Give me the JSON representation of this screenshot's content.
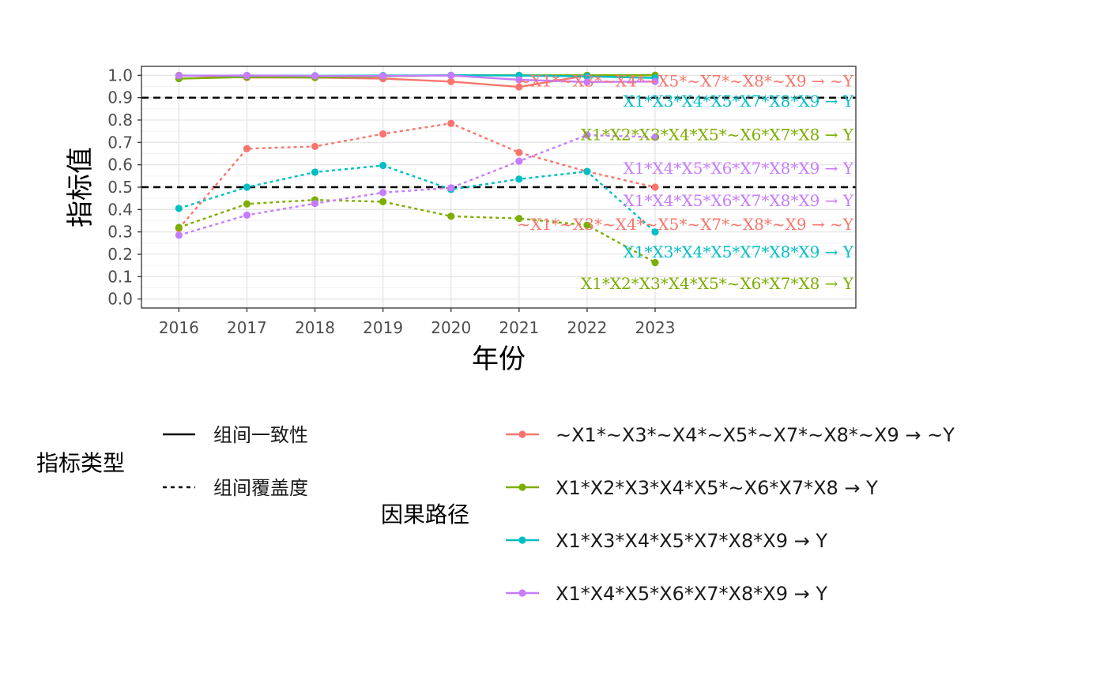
{
  "chart_data": {
    "type": "line",
    "xlabel": "年份",
    "ylabel": "指标值",
    "x": [
      2016,
      2017,
      2018,
      2019,
      2020,
      2021,
      2022,
      2023
    ],
    "xlim": [
      2015.45,
      2025.95
    ],
    "ylim": [
      -0.04,
      1.04
    ],
    "yticks": [
      0.0,
      0.1,
      0.2,
      0.3,
      0.4,
      0.5,
      0.6,
      0.7,
      0.8,
      0.9,
      1.0
    ],
    "reference_lines": [
      0.5,
      0.9
    ],
    "grid": true,
    "series": [
      {
        "name": "~X1*~X3*~X4*~X5*~X7*~X8*~X9 → ~Y",
        "color": "#F8766D",
        "consistency": [
          1.0,
          0.99,
          0.99,
          0.985,
          0.972,
          0.948,
          0.999,
          1.0
        ],
        "coverage": [
          0.315,
          0.672,
          0.682,
          0.738,
          0.785,
          0.655,
          0.57,
          0.5
        ]
      },
      {
        "name": "X1*X2*X3*X4*X5*~X6*X7*X8 → Y",
        "color": "#7CAE00",
        "consistency": [
          0.985,
          0.992,
          0.99,
          0.995,
          1.0,
          1.0,
          1.0,
          1.0
        ],
        "coverage": [
          0.32,
          0.425,
          0.443,
          0.435,
          0.37,
          0.36,
          0.33,
          0.163
        ]
      },
      {
        "name": "X1*X3*X4*X5*X7*X8*X9 → Y",
        "color": "#00BFC4",
        "consistency": [
          0.998,
          0.999,
          0.998,
          0.999,
          1.0,
          0.999,
          0.995,
          0.988
        ],
        "coverage": [
          0.405,
          0.5,
          0.567,
          0.597,
          0.49,
          0.536,
          0.57,
          0.3
        ]
      },
      {
        "name": "X1*X4*X5*X6*X7*X8*X9 → Y",
        "color": "#C77CFF",
        "consistency": [
          0.998,
          0.999,
          0.997,
          0.997,
          0.999,
          0.98,
          0.97,
          0.972
        ],
        "coverage": [
          0.285,
          0.375,
          0.427,
          0.476,
          0.497,
          0.616,
          0.733,
          0.723
        ]
      }
    ],
    "end_labels": [
      {
        "text": "~X1*~X3*~X4*~X5*~X7*~X8*~X9 → ~Y",
        "series": 0,
        "y": 0.975
      },
      {
        "text": "X1*X3*X4*X5*X7*X8*X9 → Y",
        "series": 2,
        "y": 0.885
      },
      {
        "text": "X1*X2*X3*X4*X5*~X6*X7*X8 → Y",
        "series": 1,
        "y": 0.735
      },
      {
        "text": "X1*X4*X5*X6*X7*X8*X9 → Y",
        "series": 3,
        "y": 0.585
      },
      {
        "text": "X1*X4*X5*X6*X7*X8*X9 → Y",
        "series": 3,
        "y": 0.44
      },
      {
        "text": "~X1*~X3*~X4*~X5*~X7*~X8*~X9 → ~Y",
        "series": 0,
        "y": 0.335
      },
      {
        "text": "X1*X3*X4*X5*X7*X8*X9 → Y",
        "series": 2,
        "y": 0.21
      },
      {
        "text": "X1*X2*X3*X4*X5*~X6*X7*X8 → Y",
        "series": 1,
        "y": 0.07
      }
    ],
    "legend": {
      "placement": "bottom",
      "linetype_title": "指标类型",
      "linetype_items": [
        {
          "label": "组间一致性",
          "dash": "solid"
        },
        {
          "label": "组间覆盖度",
          "dash": "dashed"
        }
      ],
      "color_title": "因果路径"
    }
  }
}
